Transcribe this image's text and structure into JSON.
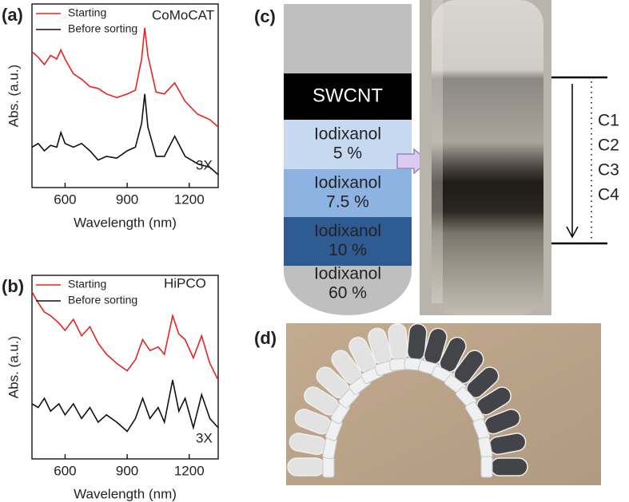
{
  "chart_data": [
    {
      "type": "line",
      "panel_label": "(a)",
      "annotations": [
        "CoMoCAT",
        "3X"
      ],
      "x_label": "Wavelength (nm)",
      "y_label": "Abs. (a.u.)",
      "x": [
        440,
        470,
        500,
        530,
        560,
        580,
        600,
        640,
        680,
        720,
        760,
        800,
        850,
        900,
        940,
        970,
        985,
        1000,
        1040,
        1080,
        1130,
        1180,
        1240,
        1300,
        1340
      ],
      "series": [
        {
          "name": "Starting",
          "color": "#e8231f",
          "values": [
            0.74,
            0.71,
            0.67,
            0.72,
            0.7,
            0.75,
            0.7,
            0.62,
            0.59,
            0.55,
            0.54,
            0.51,
            0.49,
            0.51,
            0.53,
            0.7,
            0.87,
            0.72,
            0.52,
            0.51,
            0.57,
            0.47,
            0.4,
            0.37,
            0.33
          ]
        },
        {
          "name": "Before sorting",
          "color": "#111111",
          "values": [
            0.22,
            0.24,
            0.2,
            0.23,
            0.22,
            0.3,
            0.24,
            0.22,
            0.24,
            0.2,
            0.15,
            0.17,
            0.16,
            0.2,
            0.22,
            0.35,
            0.51,
            0.33,
            0.17,
            0.17,
            0.28,
            0.17,
            0.13,
            0.11,
            0.07
          ]
        }
      ],
      "xlim": [
        440,
        1340
      ],
      "xticks": [
        600,
        900,
        1200
      ],
      "ylim": [
        0,
        1
      ],
      "legend": "top-left"
    },
    {
      "type": "line",
      "panel_label": "(b)",
      "annotations": [
        "HiPCO",
        "3X"
      ],
      "x_label": "Wavelength (nm)",
      "y_label": "Abs. (a.u.)",
      "x": [
        440,
        470,
        500,
        530,
        570,
        600,
        640,
        680,
        720,
        760,
        800,
        850,
        900,
        940,
        975,
        1010,
        1050,
        1080,
        1120,
        1150,
        1180,
        1220,
        1260,
        1300,
        1340
      ],
      "series": [
        {
          "name": "Starting",
          "color": "#e8231f",
          "values": [
            0.91,
            0.85,
            0.8,
            0.78,
            0.74,
            0.7,
            0.76,
            0.67,
            0.72,
            0.63,
            0.57,
            0.52,
            0.48,
            0.54,
            0.65,
            0.59,
            0.61,
            0.57,
            0.78,
            0.68,
            0.65,
            0.55,
            0.67,
            0.52,
            0.43
          ]
        },
        {
          "name": "Before sorting",
          "color": "#111111",
          "values": [
            0.3,
            0.28,
            0.33,
            0.26,
            0.3,
            0.24,
            0.3,
            0.22,
            0.28,
            0.2,
            0.24,
            0.2,
            0.15,
            0.22,
            0.33,
            0.22,
            0.28,
            0.2,
            0.43,
            0.26,
            0.33,
            0.17,
            0.35,
            0.22,
            0.17
          ]
        }
      ],
      "xlim": [
        440,
        1340
      ],
      "xticks": [
        600,
        900,
        1200
      ],
      "ylim": [
        0,
        1
      ],
      "legend": "top-left"
    }
  ],
  "panel_c": {
    "label": "(c)",
    "layers": [
      {
        "lines": [
          "SWCNT"
        ],
        "color": "#000000",
        "text_color": "#ffffff"
      },
      {
        "lines": [
          "Iodixanol",
          "5 %"
        ],
        "color": "#c6d9f0",
        "text_color": "#222222"
      },
      {
        "lines": [
          "Iodixanol",
          "7.5 %"
        ],
        "color": "#8db3e2",
        "text_color": "#222222"
      },
      {
        "lines": [
          "Iodixanol",
          "10 %"
        ],
        "color": "#2f5b93",
        "text_color": "#222222"
      },
      {
        "lines": [
          "Iodixanol",
          "60 %"
        ],
        "color": "#bfbfbf",
        "text_color": "#222222"
      }
    ],
    "fractions": [
      "C1",
      "C2",
      "C3",
      "C4"
    ]
  },
  "panel_d": {
    "label": "(d)"
  }
}
